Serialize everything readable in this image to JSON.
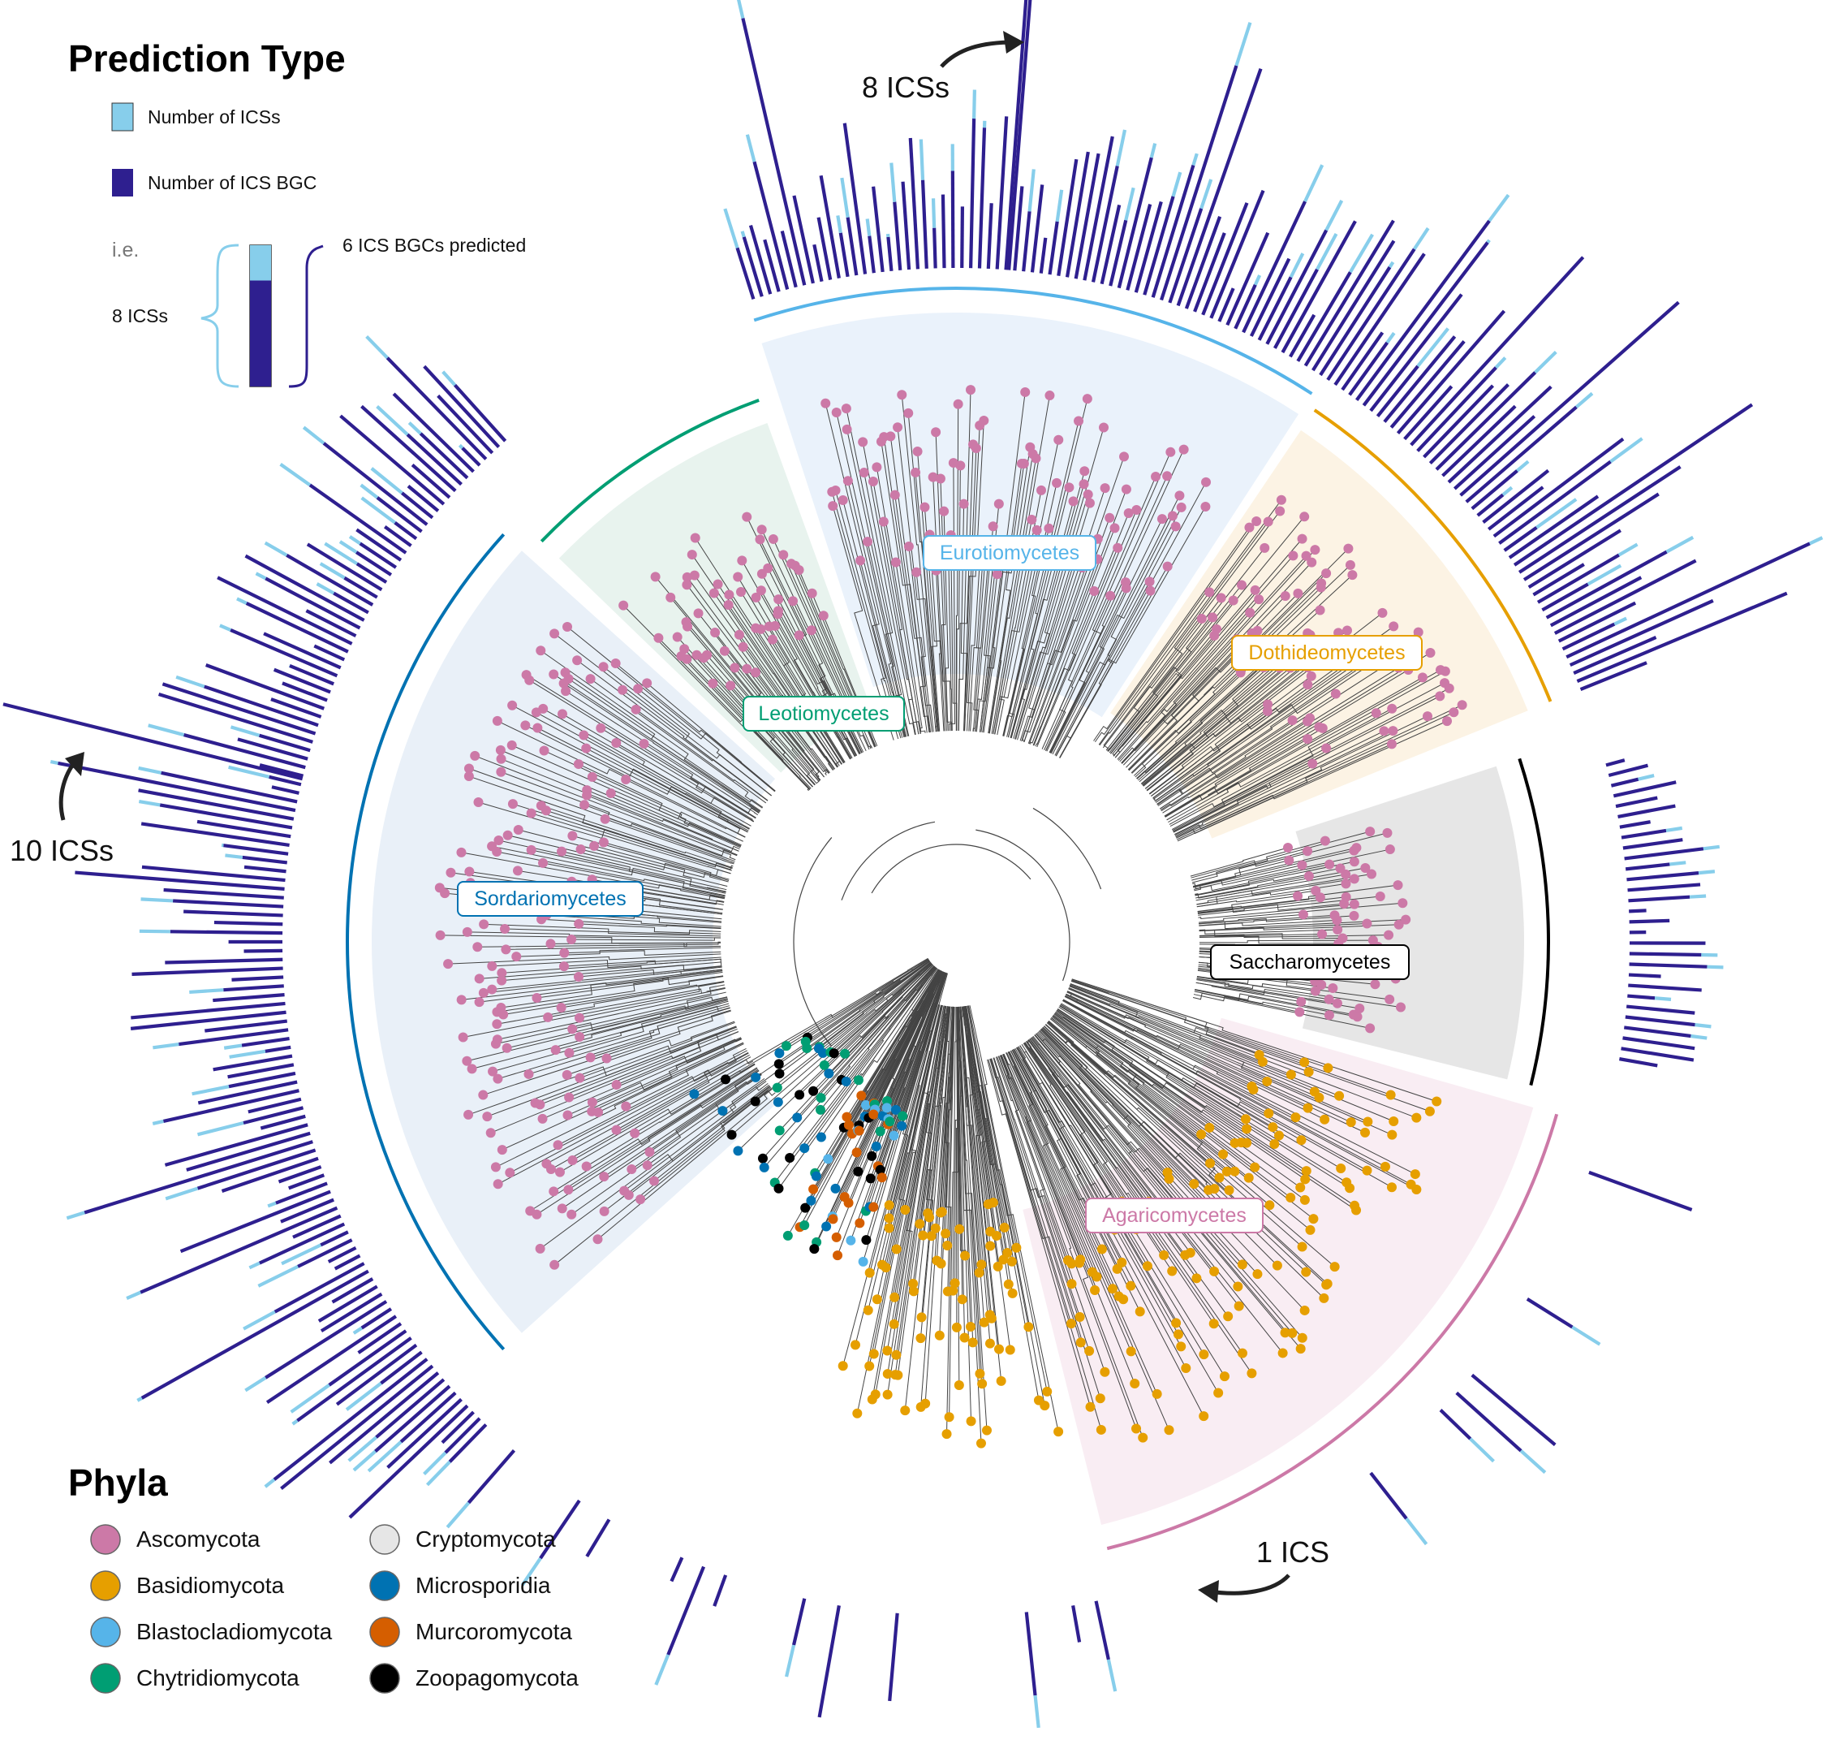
{
  "legend": {
    "prediction_title": "Prediction Type",
    "items": [
      {
        "label": "Number of ICSs",
        "color": "#87ceeb"
      },
      {
        "label": "Number of ICS BGC",
        "color": "#2e1f8f"
      }
    ],
    "example_ie": "i.e.",
    "example_total": "8 ICSs",
    "example_bgc": "6 ICS BGCs predicted",
    "example_values": {
      "ics": 8,
      "ics_bgc": 6
    },
    "phyla_title": "Phyla",
    "phyla": [
      {
        "label": "Ascomycota",
        "color": "#cc79a7"
      },
      {
        "label": "Basidiomycota",
        "color": "#e69f00"
      },
      {
        "label": "Blastocladiomycota",
        "color": "#56b4e9"
      },
      {
        "label": "Chytridiomycota",
        "color": "#009e73"
      },
      {
        "label": "Cryptomycota",
        "color": "#e6e6e6"
      },
      {
        "label": "Microsporidia",
        "color": "#0072b2"
      },
      {
        "label": "Murcoromycota",
        "color": "#d55e00"
      },
      {
        "label": "Zoopagomycota",
        "color": "#000000"
      }
    ]
  },
  "annotations": [
    {
      "text": "8 ICSs"
    },
    {
      "text": "10 ICSs"
    },
    {
      "text": "1 ICS"
    }
  ],
  "clades": [
    {
      "name": "Eurotiomycetes",
      "color": "#56b4e9",
      "bg": "#eaf2fb"
    },
    {
      "name": "Dothideomycetes",
      "color": "#e69f00",
      "bg": "#fcf3e4"
    },
    {
      "name": "Saccharomycetes",
      "color": "#000000",
      "bg": "#e6e6e6"
    },
    {
      "name": "Agaricomycetes",
      "color": "#cc79a7",
      "bg": "#f9edf3"
    },
    {
      "name": "Sordariomycetes",
      "color": "#0072b2",
      "bg": "#e9f0f8"
    },
    {
      "name": "Leotiomycetes",
      "color": "#009e73",
      "bg": "#e8f3ee"
    }
  ],
  "colors": {
    "ics": "#87ceeb",
    "ics_bgc": "#2e1f8f",
    "branch": "#444444"
  }
}
